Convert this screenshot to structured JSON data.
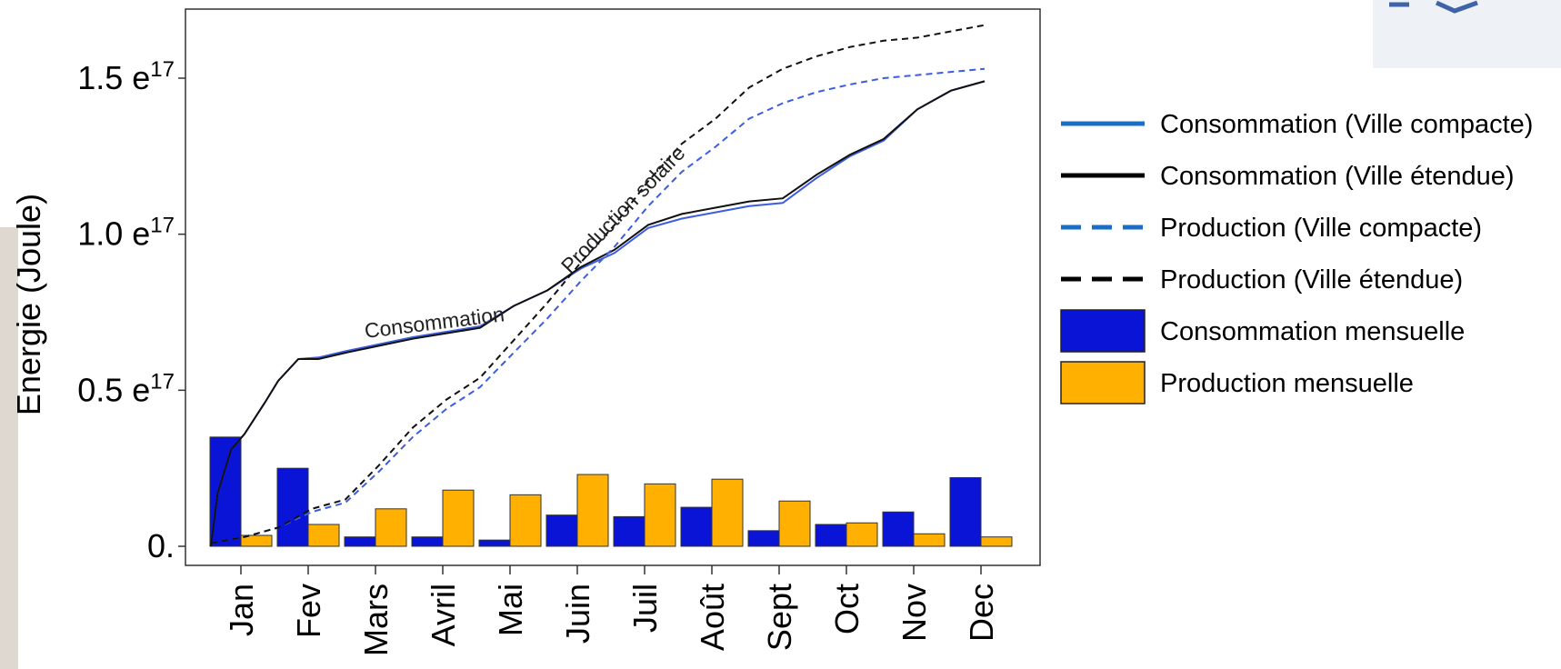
{
  "chart_data": {
    "type": "bar",
    "title": "",
    "ylabel": "Energie (Joule)",
    "xlabel": "",
    "ylim": [
      0,
      1.7e+17
    ],
    "grid": false,
    "legend_position": "right",
    "categories": [
      "Jan",
      "Fev",
      "Mars",
      "Avril",
      "Mai",
      "Juin",
      "Juil",
      "Août",
      "Sept",
      "Oct",
      "Nov",
      "Dec"
    ],
    "yticks": [
      {
        "value": 0,
        "label": "0."
      },
      {
        "value": 5e+16,
        "label": "0.5 e",
        "exp": "17"
      },
      {
        "value": 1e+17,
        "label": "1.0 e",
        "exp": "17"
      },
      {
        "value": 1.5e+17,
        "label": "1.5 e",
        "exp": "17"
      }
    ],
    "bar_series": [
      {
        "name": "Consommation mensuelle",
        "color": "#0a14d6",
        "values": [
          3.5e+16,
          2.5e+16,
          3000000000000000.0,
          3000000000000000.0,
          2000000000000000.0,
          1e+16,
          9500000000000000.0,
          1.25e+16,
          5000000000000000.0,
          7000000000000000.0,
          1.1e+16,
          2.2e+16
        ]
      },
      {
        "name": "Production mensuelle",
        "color": "#ffb000",
        "values": [
          3500000000000000.0,
          7000000000000000.0,
          1.2e+16,
          1.8e+16,
          1.65e+16,
          2.3e+16,
          2e+16,
          2.15e+16,
          1.45e+16,
          7500000000000000.0,
          4000000000000000.0,
          3000000000000000.0
        ]
      }
    ],
    "line_series": [
      {
        "name": "Consommation (Ville compacte)",
        "color": "#3d5de0",
        "dash": false,
        "x": [
          0,
          0.1,
          0.3,
          0.5,
          0.8,
          1.0,
          1.3,
          1.6,
          2.0,
          3.0,
          4.0,
          4.5,
          5.0,
          5.5,
          6.0,
          6.5,
          7.0,
          7.5,
          8.0,
          8.5,
          9.0,
          9.5,
          10.0,
          10.5,
          11.0,
          11.5
        ],
        "y": [
          0,
          1.7e+16,
          3.1e+16,
          3.6e+16,
          4.6e+16,
          5.3e+16,
          6e+16,
          6.05e+16,
          6.25e+16,
          6.7e+16,
          7.05e+16,
          7.7e+16,
          8.2e+16,
          8.9e+16,
          9.4e+16,
          1.02e+17,
          1.05e+17,
          1.07e+17,
          1.09e+17,
          1.1e+17,
          1.18e+17,
          1.25e+17,
          1.3e+17,
          1.4e+17,
          1.46e+17,
          1.49e+17
        ]
      },
      {
        "name": "Consommation (Ville étendue)",
        "color": "#111111",
        "dash": false,
        "x": [
          0,
          0.1,
          0.3,
          0.5,
          0.8,
          1.0,
          1.3,
          1.6,
          2.0,
          3.0,
          4.0,
          4.5,
          5.0,
          5.5,
          6.0,
          6.5,
          7.0,
          7.5,
          8.0,
          8.5,
          9.0,
          9.5,
          10.0,
          10.5,
          11.0,
          11.5
        ],
        "y": [
          0,
          1.7e+16,
          3.1e+16,
          3.6e+16,
          4.6e+16,
          5.3e+16,
          6e+16,
          6e+16,
          6.2e+16,
          6.65e+16,
          7e+16,
          7.7e+16,
          8.2e+16,
          8.95e+16,
          9.5e+16,
          1.03e+17,
          1.065e+17,
          1.085e+17,
          1.105e+17,
          1.115e+17,
          1.19e+17,
          1.255e+17,
          1.305e+17,
          1.4e+17,
          1.46e+17,
          1.49e+17
        ]
      },
      {
        "name": "Production (Ville compacte)",
        "color": "#3d5de0",
        "dash": true,
        "x": [
          0,
          0.5,
          1.0,
          1.5,
          2.0,
          2.5,
          3.0,
          3.5,
          4.0,
          4.5,
          5.0,
          5.5,
          6.0,
          6.5,
          7.0,
          7.5,
          8.0,
          8.5,
          9.0,
          9.5,
          10.0,
          10.5,
          11.0,
          11.5
        ],
        "y": [
          1000000000000000.0,
          3000000000000000.0,
          6000000000000000.0,
          1.1e+16,
          1.4e+16,
          2.4e+16,
          3.5e+16,
          4.4e+16,
          5.1e+16,
          6.2e+16,
          7.3e+16,
          8.5e+16,
          9.6e+16,
          1.09e+17,
          1.2e+17,
          1.28e+17,
          1.37e+17,
          1.42e+17,
          1.455e+17,
          1.48e+17,
          1.5e+17,
          1.51e+17,
          1.52e+17,
          1.53e+17
        ]
      },
      {
        "name": "Production (Ville étendue)",
        "color": "#111111",
        "dash": true,
        "x": [
          0,
          0.5,
          1.0,
          1.5,
          2.0,
          2.5,
          3.0,
          3.5,
          4.0,
          4.5,
          5.0,
          5.5,
          6.0,
          6.5,
          7.0,
          7.5,
          8.0,
          8.5,
          9.0,
          9.5,
          10.0,
          10.5,
          11.0,
          11.5
        ],
        "y": [
          1000000000000000.0,
          3000000000000000.0,
          6000000000000000.0,
          1.2e+16,
          1.5e+16,
          2.6e+16,
          3.8e+16,
          4.7e+16,
          5.4e+16,
          6.6e+16,
          7.8e+16,
          9.1e+16,
          1.03e+17,
          1.17e+17,
          1.29e+17,
          1.37e+17,
          1.47e+17,
          1.53e+17,
          1.57e+17,
          1.6e+17,
          1.62e+17,
          1.63e+17,
          1.65e+17,
          1.67e+17
        ]
      }
    ],
    "annotations": [
      {
        "text": "Consommation"
      },
      {
        "text": "Production solaire"
      }
    ],
    "legend": [
      {
        "label": "Consommation (Ville compacte)",
        "kind": "line",
        "color": "#1a6fc4",
        "dash": false
      },
      {
        "label": "Consommation (Ville étendue)",
        "kind": "line",
        "color": "#000000",
        "dash": false
      },
      {
        "label": "Production (Ville compacte)",
        "kind": "line",
        "color": "#1a6fc4",
        "dash": true
      },
      {
        "label": "Production (Ville étendue)",
        "kind": "line",
        "color": "#000000",
        "dash": true
      },
      {
        "label": "Consommation mensuelle",
        "kind": "box",
        "color": "#0a14d6"
      },
      {
        "label": "Production mensuelle",
        "kind": "box",
        "color": "#ffb000"
      }
    ]
  }
}
